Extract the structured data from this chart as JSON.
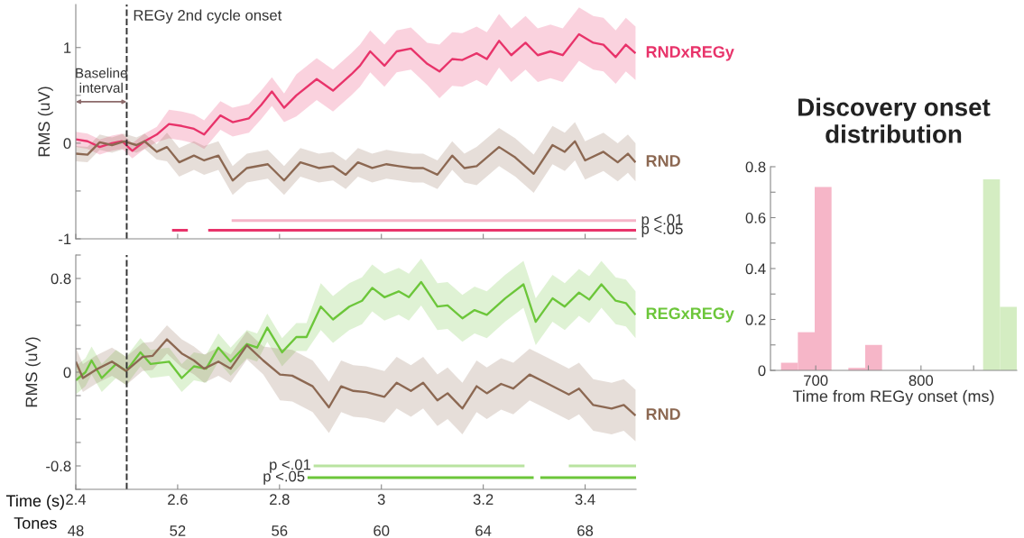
{
  "chart_data": [
    {
      "type": "line",
      "ylabel": "RMS (uV)",
      "xlim": [
        2.4,
        3.5
      ],
      "ylim": [
        -1,
        1.45
      ],
      "xticks": [
        2.4,
        2.6,
        2.8,
        3,
        3.2,
        3.4
      ],
      "yticks": [
        -1,
        {
          "value": -0.5,
          "label": null
        },
        0,
        {
          "value": 0.5,
          "label": null
        },
        1
      ],
      "tick_labels": "y",
      "grid": false,
      "ref_lines": [
        {
          "axis": "x",
          "value": 2.5,
          "label": "REGy 2nd cycle onset",
          "color": "#333333",
          "line_style": "dashed"
        }
      ],
      "annotations": [
        "Baseline\ninterval"
      ],
      "series": [
        {
          "name": "RNDxREGy",
          "color": "#e8336a",
          "x": [
            2.4,
            2.423,
            2.447,
            2.471,
            2.491,
            2.511,
            2.535,
            2.559,
            2.583,
            2.608,
            2.632,
            2.652,
            2.684,
            2.708,
            2.74,
            2.764,
            2.785,
            2.809,
            2.833,
            2.873,
            2.905,
            2.941,
            2.958,
            2.978,
            3.006,
            3.03,
            3.058,
            3.09,
            3.114,
            3.139,
            3.159,
            3.187,
            3.207,
            3.231,
            3.255,
            3.283,
            3.307,
            3.332,
            3.356,
            3.388,
            3.416,
            3.436,
            3.46,
            3.48,
            3.499
          ],
          "values": [
            0.04,
            0.02,
            -0.04,
            0,
            0.02,
            -0.08,
            0.02,
            0.09,
            0.2,
            0.18,
            0.15,
            0.09,
            0.29,
            0.22,
            0.26,
            0.4,
            0.54,
            0.37,
            0.5,
            0.67,
            0.55,
            0.72,
            0.81,
            0.96,
            0.81,
            0.96,
            0.99,
            0.83,
            0.75,
            0.88,
            0.87,
            0.94,
            0.88,
            1.07,
            0.92,
            1.05,
            0.92,
            0.96,
            0.92,
            1.14,
            1.05,
            1.03,
            0.9,
            1.03,
            0.94
          ],
          "lower": [
            -0.04,
            -0.06,
            -0.12,
            -0.08,
            -0.06,
            -0.16,
            -0.06,
            0.01,
            0.05,
            0.03,
            0,
            -0.06,
            0.14,
            0.07,
            0.11,
            0.25,
            0.39,
            0.22,
            0.28,
            0.45,
            0.33,
            0.5,
            0.59,
            0.74,
            0.59,
            0.74,
            0.77,
            0.61,
            0.47,
            0.6,
            0.59,
            0.66,
            0.6,
            0.79,
            0.64,
            0.77,
            0.64,
            0.68,
            0.64,
            0.86,
            0.77,
            0.75,
            0.62,
            0.75,
            0.66
          ],
          "upper": [
            0.12,
            0.1,
            0.04,
            0.08,
            0.1,
            0,
            0.1,
            0.17,
            0.35,
            0.33,
            0.3,
            0.24,
            0.44,
            0.37,
            0.41,
            0.55,
            0.69,
            0.52,
            0.72,
            0.89,
            0.77,
            0.94,
            1.03,
            1.18,
            1.03,
            1.18,
            1.21,
            1.05,
            1.03,
            1.16,
            1.15,
            1.22,
            1.16,
            1.35,
            1.2,
            1.33,
            1.2,
            1.24,
            1.2,
            1.42,
            1.33,
            1.31,
            1.18,
            1.31,
            1.22
          ]
        },
        {
          "name": "RND",
          "color": "#8c6852",
          "x": [
            2.4,
            2.423,
            2.447,
            2.471,
            2.495,
            2.519,
            2.535,
            2.559,
            2.579,
            2.603,
            2.632,
            2.652,
            2.68,
            2.708,
            2.736,
            2.777,
            2.809,
            2.841,
            2.877,
            2.905,
            2.93,
            2.954,
            2.982,
            3.01,
            3.034,
            3.062,
            3.082,
            3.11,
            3.139,
            3.163,
            3.187,
            3.231,
            3.263,
            3.299,
            3.336,
            3.36,
            3.38,
            3.4,
            3.436,
            3.464,
            3.484,
            3.499
          ],
          "values": [
            -0.11,
            -0.12,
            0.01,
            -0.02,
            0.02,
            -0.02,
            0.02,
            -0.09,
            -0.04,
            -0.2,
            -0.13,
            -0.18,
            -0.13,
            -0.39,
            -0.26,
            -0.22,
            -0.39,
            -0.2,
            -0.26,
            -0.24,
            -0.33,
            -0.2,
            -0.26,
            -0.22,
            -0.24,
            -0.26,
            -0.26,
            -0.33,
            -0.13,
            -0.26,
            -0.24,
            -0.04,
            -0.15,
            -0.32,
            -0.02,
            -0.09,
            0.02,
            -0.18,
            -0.09,
            -0.2,
            -0.11,
            -0.2
          ],
          "lower": [
            -0.19,
            -0.2,
            -0.07,
            -0.1,
            -0.06,
            -0.1,
            -0.06,
            -0.17,
            -0.19,
            -0.35,
            -0.28,
            -0.33,
            -0.28,
            -0.54,
            -0.41,
            -0.37,
            -0.54,
            -0.35,
            -0.41,
            -0.39,
            -0.48,
            -0.35,
            -0.41,
            -0.37,
            -0.39,
            -0.41,
            -0.41,
            -0.48,
            -0.28,
            -0.41,
            -0.44,
            -0.24,
            -0.35,
            -0.52,
            -0.22,
            -0.29,
            -0.18,
            -0.38,
            -0.29,
            -0.4,
            -0.31,
            -0.4
          ],
          "upper": [
            -0.03,
            -0.04,
            0.09,
            0.06,
            0.1,
            0.06,
            0.1,
            -0.01,
            0.11,
            -0.05,
            0.02,
            -0.03,
            0.02,
            -0.24,
            -0.11,
            -0.07,
            -0.24,
            -0.05,
            -0.11,
            -0.09,
            -0.18,
            -0.05,
            -0.11,
            -0.07,
            -0.09,
            -0.11,
            -0.11,
            -0.18,
            0.02,
            -0.11,
            -0.04,
            0.16,
            0.05,
            -0.12,
            0.18,
            0.11,
            0.22,
            0.02,
            0.11,
            0,
            0.09,
            0
          ]
        },
        {
          "name": "p <.01",
          "color": "#f5b5c8",
          "x": [
            2.706,
            3.5
          ],
          "values": [
            -0.81,
            -0.81
          ]
        },
        {
          "name": "p <.05",
          "color": "#e8336a",
          "x": [
            2.589,
            2.62,
            2.64,
            2.66,
            3.5
          ],
          "values": [
            -0.91,
            -0.91,
            null,
            -0.91,
            -0.91
          ]
        }
      ]
    },
    {
      "type": "line",
      "ylabel": "RMS (uV)",
      "xlabel": "Time (s)",
      "x2label": "Tones",
      "xlim": [
        2.4,
        3.5
      ],
      "ylim": [
        -1,
        1
      ],
      "xticks": [
        2.4,
        2.6,
        2.8,
        3,
        3.2,
        3.4
      ],
      "x2lim": [
        48,
        70
      ],
      "x2ticks": [
        48,
        52,
        56,
        60,
        64,
        68
      ],
      "yticks": [
        {
          "value": -1,
          "label": null
        },
        -0.8,
        {
          "value": -0.6,
          "label": null
        },
        {
          "value": -0.4,
          "label": null
        },
        {
          "value": -0.2,
          "label": null
        },
        0,
        {
          "value": 0.2,
          "label": null
        },
        {
          "value": 0.4,
          "label": null
        },
        {
          "value": 0.6,
          "label": null
        },
        0.8,
        {
          "value": 1,
          "label": null
        }
      ],
      "grid": false,
      "ref_lines": [
        {
          "axis": "x",
          "value": 2.5,
          "color": "#333333",
          "line_style": "dashed"
        }
      ],
      "series": [
        {
          "name": "REGxREGy",
          "color": "#6cc63a",
          "x": [
            2.4,
            2.419,
            2.431,
            2.451,
            2.479,
            2.499,
            2.527,
            2.547,
            2.583,
            2.608,
            2.632,
            2.656,
            2.68,
            2.704,
            2.736,
            2.756,
            2.776,
            2.805,
            2.833,
            2.853,
            2.881,
            2.905,
            2.937,
            2.962,
            2.982,
            3.006,
            3.034,
            3.054,
            3.078,
            3.11,
            3.13,
            3.159,
            3.183,
            3.207,
            3.243,
            3.279,
            3.303,
            3.336,
            3.36,
            3.388,
            3.408,
            3.432,
            3.46,
            3.48,
            3.499
          ],
          "values": [
            -0.07,
            0,
            0.1,
            -0.05,
            0.07,
            0.01,
            0.17,
            0.07,
            0.09,
            -0.05,
            0.05,
            0.03,
            0.21,
            0.09,
            0.24,
            0.21,
            0.38,
            0.17,
            0.3,
            0.3,
            0.56,
            0.45,
            0.56,
            0.61,
            0.72,
            0.64,
            0.69,
            0.64,
            0.77,
            0.56,
            0.57,
            0.46,
            0.53,
            0.49,
            0.63,
            0.75,
            0.43,
            0.63,
            0.56,
            0.68,
            0.62,
            0.75,
            0.61,
            0.59,
            0.49
          ],
          "lower": [
            -0.19,
            -0.12,
            -0.02,
            -0.17,
            -0.05,
            -0.11,
            0.05,
            -0.05,
            -0.03,
            -0.17,
            -0.07,
            -0.09,
            0.09,
            -0.03,
            0.12,
            0.09,
            0.26,
            0.05,
            0.18,
            0.18,
            0.36,
            0.25,
            0.36,
            0.41,
            0.52,
            0.44,
            0.49,
            0.44,
            0.57,
            0.36,
            0.37,
            0.26,
            0.33,
            0.29,
            0.43,
            0.55,
            0.23,
            0.43,
            0.36,
            0.48,
            0.42,
            0.55,
            0.41,
            0.39,
            0.29
          ],
          "upper": [
            0.05,
            0.12,
            0.22,
            0.07,
            0.19,
            0.13,
            0.29,
            0.19,
            0.21,
            0.07,
            0.17,
            0.15,
            0.33,
            0.21,
            0.36,
            0.33,
            0.5,
            0.29,
            0.42,
            0.42,
            0.76,
            0.65,
            0.76,
            0.81,
            0.92,
            0.84,
            0.89,
            0.84,
            0.97,
            0.76,
            0.77,
            0.66,
            0.73,
            0.69,
            0.83,
            0.95,
            0.63,
            0.83,
            0.76,
            0.88,
            0.82,
            0.95,
            0.81,
            0.79,
            0.69
          ]
        },
        {
          "name": "RND",
          "color": "#8c6852",
          "x": [
            2.4,
            2.414,
            2.439,
            2.471,
            2.499,
            2.531,
            2.551,
            2.579,
            2.608,
            2.632,
            2.652,
            2.68,
            2.704,
            2.736,
            2.768,
            2.801,
            2.825,
            2.865,
            2.897,
            2.921,
            2.945,
            2.97,
            3.006,
            3.03,
            3.058,
            3.082,
            3.11,
            3.13,
            3.159,
            3.187,
            3.207,
            3.235,
            3.259,
            3.291,
            3.323,
            3.368,
            3.388,
            3.416,
            3.452,
            3.476,
            3.499
          ],
          "values": [
            0.09,
            -0.05,
            0.02,
            0.09,
            0.01,
            0.13,
            0.14,
            0.28,
            0.16,
            0.1,
            0.03,
            0.09,
            0.03,
            0.23,
            0.1,
            -0.02,
            -0.03,
            -0.12,
            -0.3,
            -0.12,
            -0.16,
            -0.17,
            -0.21,
            -0.09,
            -0.16,
            -0.09,
            -0.24,
            -0.18,
            -0.31,
            -0.12,
            -0.18,
            -0.1,
            -0.14,
            -0.02,
            -0.09,
            -0.19,
            -0.14,
            -0.28,
            -0.31,
            -0.28,
            -0.37
          ],
          "lower": [
            -0.03,
            -0.17,
            -0.1,
            -0.03,
            -0.11,
            0.01,
            0.02,
            0.16,
            0.04,
            -0.02,
            -0.09,
            -0.03,
            -0.09,
            0.11,
            -0.02,
            -0.24,
            -0.25,
            -0.34,
            -0.52,
            -0.34,
            -0.38,
            -0.39,
            -0.43,
            -0.31,
            -0.38,
            -0.31,
            -0.46,
            -0.4,
            -0.53,
            -0.34,
            -0.4,
            -0.32,
            -0.36,
            -0.24,
            -0.31,
            -0.41,
            -0.36,
            -0.5,
            -0.53,
            -0.5,
            -0.59
          ],
          "upper": [
            0.21,
            0.07,
            0.14,
            0.21,
            0.13,
            0.25,
            0.26,
            0.4,
            0.28,
            0.22,
            0.15,
            0.21,
            0.15,
            0.35,
            0.22,
            0.2,
            0.19,
            0.1,
            -0.08,
            0.1,
            0.06,
            0.05,
            0.01,
            0.13,
            0.06,
            0.13,
            -0.02,
            0.04,
            -0.09,
            0.1,
            0.04,
            0.12,
            0.08,
            0.2,
            0.13,
            0.03,
            0.08,
            -0.06,
            -0.09,
            -0.06,
            -0.15
          ]
        },
        {
          "name": "p <.01",
          "color": "#b9e3a0",
          "x": [
            2.867,
            3.281,
            3.32,
            3.368,
            3.5
          ],
          "values": [
            -0.8,
            -0.8,
            null,
            -0.8,
            -0.8
          ]
        },
        {
          "name": "p <.05",
          "color": "#6cc63a",
          "x": [
            2.855,
            3.299,
            3.305,
            3.312,
            3.5
          ],
          "values": [
            -0.9,
            -0.9,
            null,
            -0.9,
            -0.9
          ]
        }
      ]
    },
    {
      "type": "histogram",
      "title": "Discovery onset distribution",
      "xlabel": "Time from REGy onset (ms)",
      "bins": [
        667,
        683,
        699,
        715,
        731,
        747,
        763,
        779,
        795,
        811,
        827,
        843,
        859,
        875,
        891
      ],
      "values": [
        0.03,
        0.15,
        0.72,
        0,
        0.01,
        0.1,
        0,
        0,
        0,
        0,
        0,
        0,
        0.75,
        0.25
      ],
      "colors": [
        "#f6b6c8",
        "#f6b6c8",
        "#f6b6c8",
        "#f6b6c8",
        "#f6b6c8",
        "#f6b6c8",
        "#f6b6c8",
        "#f6b6c8",
        "#f6b6c8",
        "#f6b6c8",
        "#f6b6c8",
        "#f6b6c8",
        "#d4edc2",
        "#d4edc2"
      ],
      "xlim": [
        657,
        891
      ],
      "xticks": [
        700,
        {
          "value": 750,
          "label": null
        },
        800,
        {
          "value": 850,
          "label": null
        }
      ],
      "ylim": [
        0,
        0.8
      ],
      "yticks": [
        0,
        {
          "value": 0.1,
          "label": null
        },
        0.2,
        {
          "value": 0.3,
          "label": null
        },
        0.4,
        {
          "value": 0.5,
          "label": null
        },
        0.6,
        {
          "value": 0.7,
          "label": null
        },
        0.8
      ],
      "grid": false
    }
  ]
}
